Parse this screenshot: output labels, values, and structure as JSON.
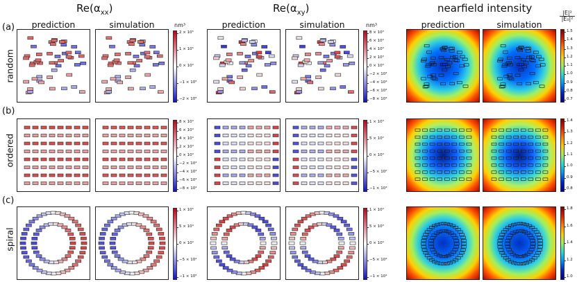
{
  "headers": {
    "re_axx": "Re(α_xx)",
    "re_axy": "Re(α_xy)",
    "nearfield": "nearfield intensity"
  },
  "subtitles": {
    "prediction": "prediction",
    "simulation": "simulation"
  },
  "units": {
    "nm3_a": "nm³",
    "nm3_b": "nm³",
    "field_num": "|E|²",
    "field_den": "|E₀|²"
  },
  "rows": [
    {
      "tag": "(a)",
      "name": "random"
    },
    {
      "tag": "(b)",
      "name": "ordered"
    },
    {
      "tag": "(c)",
      "name": "spiral"
    }
  ],
  "colorbars": {
    "axx": [
      [
        "2 × 10⁵",
        "1 × 10⁵",
        "0 × 10⁰",
        "−1 × 10⁵",
        "−2 × 10⁵"
      ],
      [
        "8 × 10⁴",
        "6 × 10⁴",
        "4 × 10⁴",
        "2 × 10⁴",
        "0 × 10⁰",
        "−2 × 10⁴",
        "−4 × 10⁴",
        "−6 × 10⁴",
        "−8 × 10⁴"
      ],
      [
        "1 × 10⁵",
        "5 × 10⁴",
        "0 × 10⁰",
        "−5 × 10⁴",
        "−1 × 10⁵"
      ]
    ],
    "axy": [
      [
        "8 × 10³",
        "6 × 10³",
        "4 × 10³",
        "2 × 10³",
        "0 × 10⁰",
        "−2 × 10³",
        "−4 × 10³",
        "−6 × 10³",
        "−8 × 10³"
      ],
      [
        "1 × 10³",
        "5 × 10²",
        "0 × 10⁰",
        "−5 × 10²",
        "−1 × 10³"
      ],
      [
        "1 × 10⁴",
        "5 × 10³",
        "0 × 10⁰",
        "−5 × 10³",
        "−1 × 10⁴"
      ]
    ],
    "field": [
      [
        "1.5",
        "1.4",
        "1.3",
        "1.2",
        "1.1",
        "1.0",
        "0.9",
        "0.8",
        "0.7"
      ],
      [
        "1.4",
        "1.3",
        "1.2",
        "1.1",
        "1.0",
        "0.9",
        "0.8"
      ],
      [
        "1.8",
        "1.6",
        "1.4",
        "1.2",
        "1.0"
      ]
    ]
  },
  "colors": {
    "red": "#d7191c",
    "blue": "#2c2cd0",
    "neutral": "#f2f2f2"
  }
}
